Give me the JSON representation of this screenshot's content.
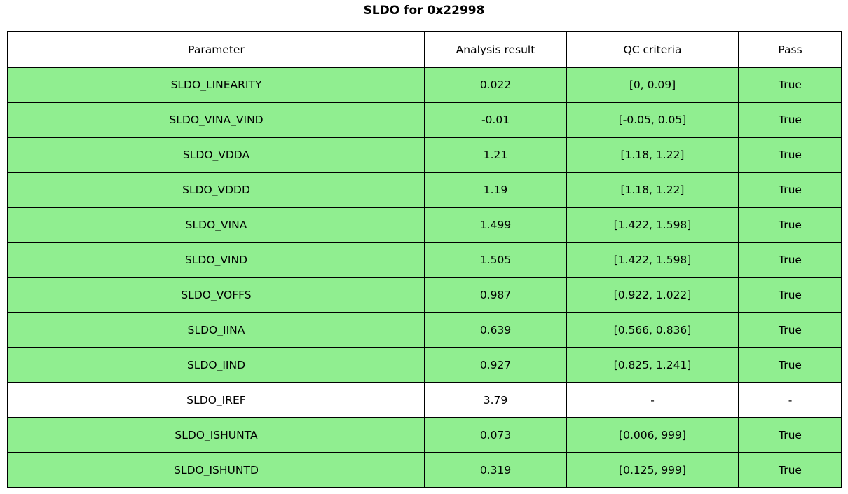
{
  "title": "SLDO for 0x22998",
  "table": {
    "headers": [
      "Parameter",
      "Analysis result",
      "QC criteria",
      "Pass"
    ],
    "row_keys": [
      "parameter",
      "result",
      "criteria",
      "pass"
    ],
    "rows": [
      {
        "parameter": "SLDO_LINEARITY",
        "result": "0.022",
        "criteria": "[0, 0.09]",
        "pass": "True",
        "highlight": true
      },
      {
        "parameter": "SLDO_VINA_VIND",
        "result": "-0.01",
        "criteria": "[-0.05, 0.05]",
        "pass": "True",
        "highlight": true
      },
      {
        "parameter": "SLDO_VDDA",
        "result": "1.21",
        "criteria": "[1.18, 1.22]",
        "pass": "True",
        "highlight": true
      },
      {
        "parameter": "SLDO_VDDD",
        "result": "1.19",
        "criteria": "[1.18, 1.22]",
        "pass": "True",
        "highlight": true
      },
      {
        "parameter": "SLDO_VINA",
        "result": "1.499",
        "criteria": "[1.422, 1.598]",
        "pass": "True",
        "highlight": true
      },
      {
        "parameter": "SLDO_VIND",
        "result": "1.505",
        "criteria": "[1.422, 1.598]",
        "pass": "True",
        "highlight": true
      },
      {
        "parameter": "SLDO_VOFFS",
        "result": "0.987",
        "criteria": "[0.922, 1.022]",
        "pass": "True",
        "highlight": true
      },
      {
        "parameter": "SLDO_IINA",
        "result": "0.639",
        "criteria": "[0.566, 0.836]",
        "pass": "True",
        "highlight": true
      },
      {
        "parameter": "SLDO_IIND",
        "result": "0.927",
        "criteria": "[0.825, 1.241]",
        "pass": "True",
        "highlight": true
      },
      {
        "parameter": "SLDO_IREF",
        "result": "3.79",
        "criteria": "-",
        "pass": "-",
        "highlight": false
      },
      {
        "parameter": "SLDO_ISHUNTA",
        "result": "0.073",
        "criteria": "[0.006, 999]",
        "pass": "True",
        "highlight": true
      },
      {
        "parameter": "SLDO_ISHUNTD",
        "result": "0.319",
        "criteria": "[0.125, 999]",
        "pass": "True",
        "highlight": true
      }
    ],
    "colors": {
      "pass_row_bg": "#90EE90",
      "neutral_row_bg": "#FFFFFF",
      "border": "#000000",
      "text": "#000000"
    }
  },
  "chart_data": {
    "type": "table",
    "title": "SLDO for 0x22998",
    "columns": [
      "Parameter",
      "Analysis result",
      "QC criteria",
      "Pass"
    ],
    "rows": [
      [
        "SLDO_LINEARITY",
        "0.022",
        "[0, 0.09]",
        "True"
      ],
      [
        "SLDO_VINA_VIND",
        "-0.01",
        "[-0.05, 0.05]",
        "True"
      ],
      [
        "SLDO_VDDA",
        "1.21",
        "[1.18, 1.22]",
        "True"
      ],
      [
        "SLDO_VDDD",
        "1.19",
        "[1.18, 1.22]",
        "True"
      ],
      [
        "SLDO_VINA",
        "1.499",
        "[1.422, 1.598]",
        "True"
      ],
      [
        "SLDO_VIND",
        "1.505",
        "[1.422, 1.598]",
        "True"
      ],
      [
        "SLDO_VOFFS",
        "0.987",
        "[0.922, 1.022]",
        "True"
      ],
      [
        "SLDO_IINA",
        "0.639",
        "[0.566, 0.836]",
        "True"
      ],
      [
        "SLDO_IIND",
        "0.927",
        "[0.825, 1.241]",
        "True"
      ],
      [
        "SLDO_IREF",
        "3.79",
        "-",
        "-"
      ],
      [
        "SLDO_ISHUNTA",
        "0.073",
        "[0.006, 999]",
        "True"
      ],
      [
        "SLDO_ISHUNTD",
        "0.319",
        "[0.125, 999]",
        "True"
      ]
    ],
    "row_highlighted_green": [
      true,
      true,
      true,
      true,
      true,
      true,
      true,
      true,
      true,
      false,
      true,
      true
    ]
  }
}
